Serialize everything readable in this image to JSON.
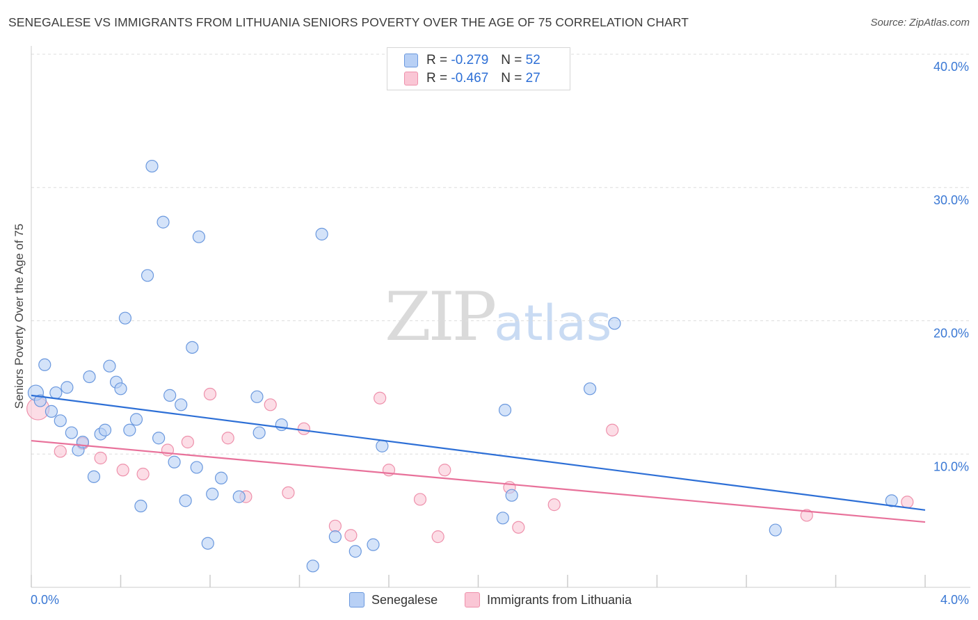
{
  "header": {
    "title": "SENEGALESE VS IMMIGRANTS FROM LITHUANIA SENIORS POVERTY OVER THE AGE OF 75 CORRELATION CHART",
    "source": "Source: ZipAtlas.com"
  },
  "watermark": {
    "zip": "ZIP",
    "atlas": "atlas"
  },
  "legend": {
    "r_label": "R =",
    "n_label": "N =",
    "rows": [
      {
        "r_value": "-0.279",
        "n_value": "52"
      },
      {
        "r_value": "-0.467",
        "n_value": "27"
      }
    ]
  },
  "colors": {
    "blue_fill": "#b8d0f5",
    "blue_stroke": "#6a98de",
    "blue_line": "#2d6fd6",
    "pink_fill": "#fac6d5",
    "pink_stroke": "#ee90ab",
    "pink_line": "#e8719a",
    "grid": "#dddddd",
    "tick_text": "#3a78d4"
  },
  "chart_data": {
    "type": "scatter",
    "title": "SENEGALESE VS IMMIGRANTS FROM LITHUANIA SENIORS POVERTY OVER THE AGE OF 75 CORRELATION CHART",
    "xlabel": "",
    "ylabel": "Seniors Poverty Over the Age of 75",
    "xlim": [
      0,
      4.0
    ],
    "ylim": [
      0,
      40.0
    ],
    "x_tick_labels": [
      "0.0%",
      "4.0%"
    ],
    "y_tick_labels": [
      "10.0%",
      "20.0%",
      "30.0%",
      "40.0%"
    ],
    "y_ticks": [
      10,
      20,
      30,
      40
    ],
    "grid": true,
    "legend_position": "bottom",
    "series": [
      {
        "name": "Senegalese",
        "color": "#6a98de",
        "r": -0.279,
        "n": 52,
        "trend": {
          "x": [
            0.0,
            4.0
          ],
          "y": [
            14.4,
            5.8
          ]
        },
        "points": [
          {
            "x": 0.02,
            "y": 14.6
          },
          {
            "x": 0.04,
            "y": 14.0
          },
          {
            "x": 0.06,
            "y": 16.7
          },
          {
            "x": 0.09,
            "y": 13.2
          },
          {
            "x": 0.11,
            "y": 14.6
          },
          {
            "x": 0.13,
            "y": 12.5
          },
          {
            "x": 0.16,
            "y": 15.0
          },
          {
            "x": 0.18,
            "y": 11.6
          },
          {
            "x": 0.21,
            "y": 10.3
          },
          {
            "x": 0.23,
            "y": 10.9
          },
          {
            "x": 0.26,
            "y": 15.8
          },
          {
            "x": 0.28,
            "y": 8.3
          },
          {
            "x": 0.31,
            "y": 11.5
          },
          {
            "x": 0.33,
            "y": 11.8
          },
          {
            "x": 0.35,
            "y": 16.6
          },
          {
            "x": 0.38,
            "y": 15.4
          },
          {
            "x": 0.4,
            "y": 14.9
          },
          {
            "x": 0.42,
            "y": 20.2
          },
          {
            "x": 0.44,
            "y": 11.8
          },
          {
            "x": 0.47,
            "y": 12.6
          },
          {
            "x": 0.49,
            "y": 6.1
          },
          {
            "x": 0.52,
            "y": 23.4
          },
          {
            "x": 0.54,
            "y": 31.6
          },
          {
            "x": 0.57,
            "y": 11.2
          },
          {
            "x": 0.59,
            "y": 27.4
          },
          {
            "x": 0.62,
            "y": 14.4
          },
          {
            "x": 0.64,
            "y": 9.4
          },
          {
            "x": 0.67,
            "y": 13.7
          },
          {
            "x": 0.69,
            "y": 6.5
          },
          {
            "x": 0.72,
            "y": 18.0
          },
          {
            "x": 0.74,
            "y": 9.0
          },
          {
            "x": 0.75,
            "y": 26.3
          },
          {
            "x": 0.79,
            "y": 3.3
          },
          {
            "x": 0.81,
            "y": 7.0
          },
          {
            "x": 0.85,
            "y": 8.2
          },
          {
            "x": 0.93,
            "y": 6.8
          },
          {
            "x": 1.01,
            "y": 14.3
          },
          {
            "x": 1.02,
            "y": 11.6
          },
          {
            "x": 1.12,
            "y": 12.2
          },
          {
            "x": 1.26,
            "y": 1.6
          },
          {
            "x": 1.3,
            "y": 26.5
          },
          {
            "x": 1.36,
            "y": 3.8
          },
          {
            "x": 1.45,
            "y": 2.7
          },
          {
            "x": 1.53,
            "y": 3.2
          },
          {
            "x": 1.57,
            "y": 10.6
          },
          {
            "x": 2.11,
            "y": 5.2
          },
          {
            "x": 2.12,
            "y": 13.3
          },
          {
            "x": 2.15,
            "y": 6.9
          },
          {
            "x": 2.5,
            "y": 14.9
          },
          {
            "x": 2.61,
            "y": 19.8
          },
          {
            "x": 3.33,
            "y": 4.3
          },
          {
            "x": 3.85,
            "y": 6.5
          }
        ]
      },
      {
        "name": "Immigrants from Lithuania",
        "color": "#ee90ab",
        "r": -0.467,
        "n": 27,
        "trend": {
          "x": [
            0.0,
            4.0
          ],
          "y": [
            11.0,
            4.9
          ]
        },
        "points": [
          {
            "x": 0.03,
            "y": 13.4
          },
          {
            "x": 0.13,
            "y": 10.2
          },
          {
            "x": 0.23,
            "y": 10.8
          },
          {
            "x": 0.31,
            "y": 9.7
          },
          {
            "x": 0.41,
            "y": 8.8
          },
          {
            "x": 0.5,
            "y": 8.5
          },
          {
            "x": 0.61,
            "y": 10.3
          },
          {
            "x": 0.7,
            "y": 10.9
          },
          {
            "x": 0.8,
            "y": 14.5
          },
          {
            "x": 0.88,
            "y": 11.2
          },
          {
            "x": 0.96,
            "y": 6.8
          },
          {
            "x": 1.07,
            "y": 13.7
          },
          {
            "x": 1.15,
            "y": 7.1
          },
          {
            "x": 1.22,
            "y": 11.9
          },
          {
            "x": 1.36,
            "y": 4.6
          },
          {
            "x": 1.43,
            "y": 3.9
          },
          {
            "x": 1.56,
            "y": 14.2
          },
          {
            "x": 1.6,
            "y": 8.8
          },
          {
            "x": 1.74,
            "y": 6.6
          },
          {
            "x": 1.82,
            "y": 3.8
          },
          {
            "x": 1.85,
            "y": 8.8
          },
          {
            "x": 2.14,
            "y": 7.5
          },
          {
            "x": 2.18,
            "y": 4.5
          },
          {
            "x": 2.34,
            "y": 6.2
          },
          {
            "x": 2.6,
            "y": 11.8
          },
          {
            "x": 3.47,
            "y": 5.4
          },
          {
            "x": 3.92,
            "y": 6.4
          }
        ]
      }
    ]
  }
}
